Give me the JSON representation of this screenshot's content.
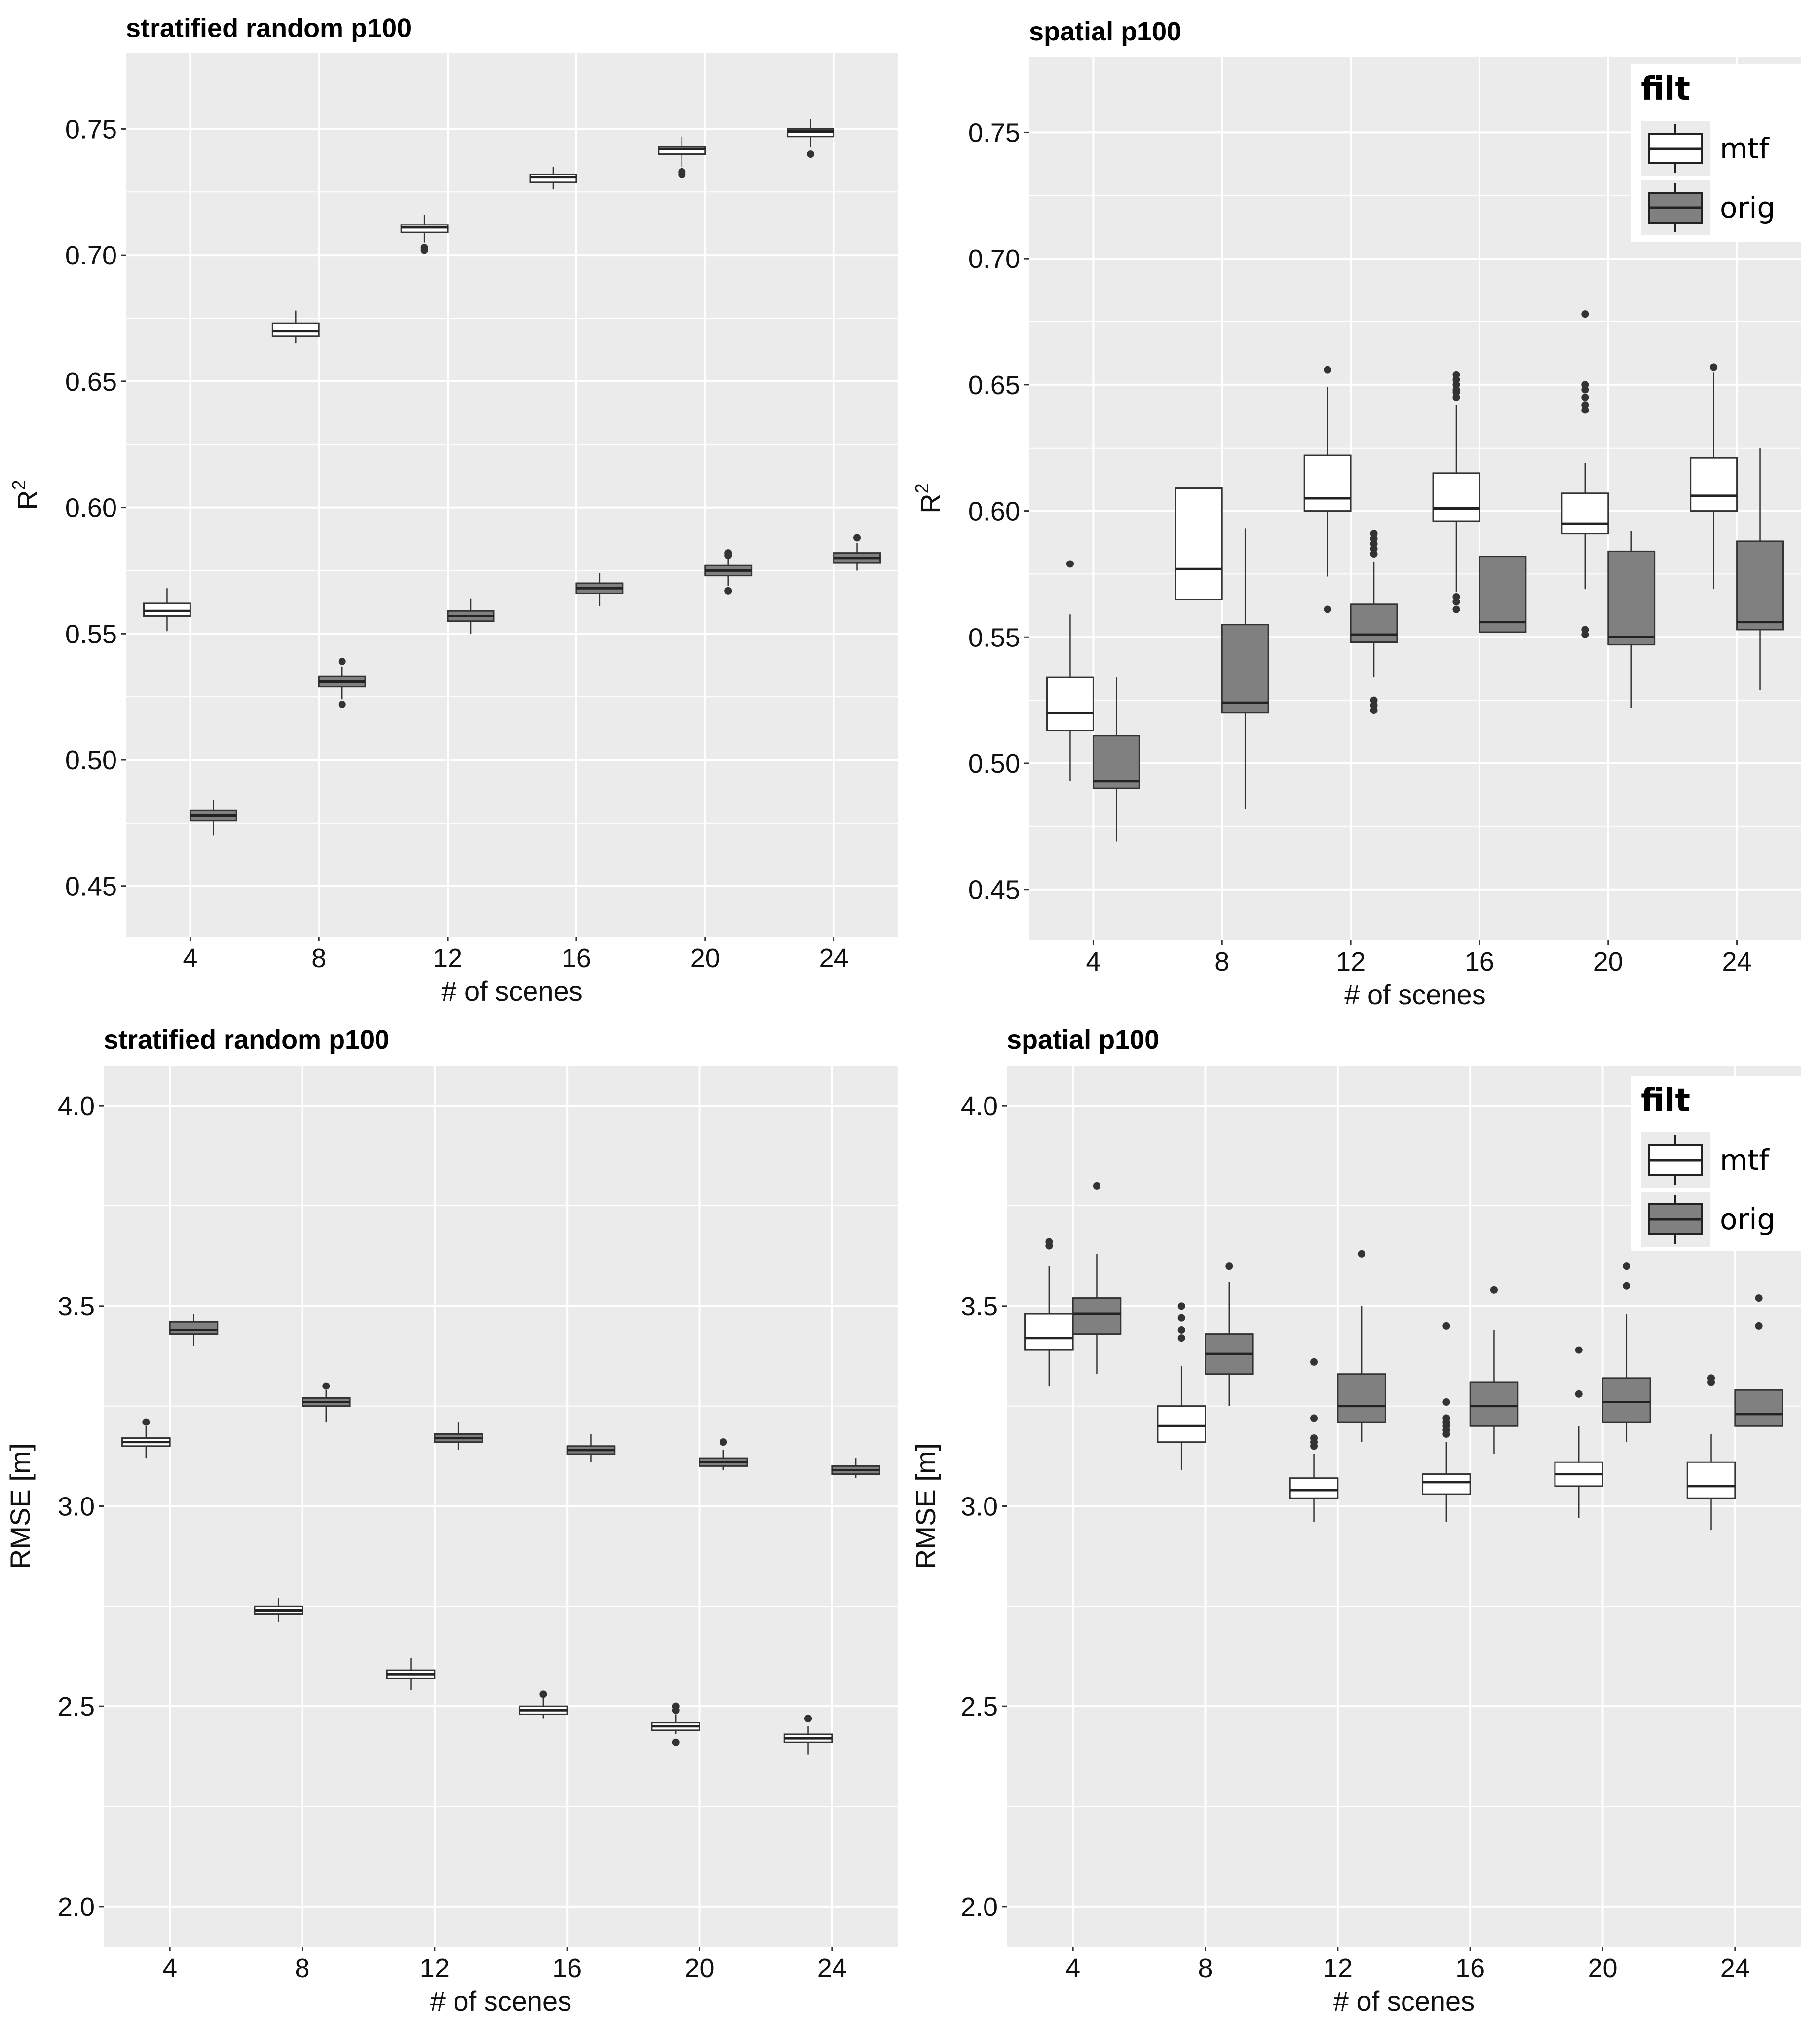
{
  "colors": {
    "panel_bg": "#EBEBEB",
    "grid": "#FFFFFF",
    "mtf_fill": "#FFFFFF",
    "orig_fill": "#808080",
    "stroke": "#333333"
  },
  "chart_data": [
    {
      "type": "boxplot",
      "title": "stratified random p100",
      "xlabel": "# of scenes",
      "ylabel": "R",
      "ylabel_sup": "2",
      "categories": [
        "4",
        "8",
        "12",
        "16",
        "20",
        "24"
      ],
      "ylim": [
        0.43,
        0.78
      ],
      "yticks": [
        0.45,
        0.5,
        0.55,
        0.6,
        0.65,
        0.7,
        0.75
      ],
      "ytick_labels": [
        "0.45",
        "0.50",
        "0.55",
        "0.60",
        "0.65",
        "0.70",
        "0.75"
      ],
      "legend": null,
      "series": [
        {
          "name": "mtf",
          "boxes": [
            {
              "lw": 0.551,
              "q1": 0.557,
              "med": 0.559,
              "q3": 0.562,
              "uw": 0.568,
              "out": []
            },
            {
              "lw": 0.665,
              "q1": 0.668,
              "med": 0.67,
              "q3": 0.673,
              "uw": 0.678,
              "out": []
            },
            {
              "lw": 0.705,
              "q1": 0.709,
              "med": 0.711,
              "q3": 0.712,
              "uw": 0.716,
              "out": [
                0.702,
                0.703
              ]
            },
            {
              "lw": 0.726,
              "q1": 0.729,
              "med": 0.731,
              "q3": 0.732,
              "uw": 0.735,
              "out": []
            },
            {
              "lw": 0.735,
              "q1": 0.74,
              "med": 0.742,
              "q3": 0.743,
              "uw": 0.747,
              "out": [
                0.732,
                0.733
              ]
            },
            {
              "lw": 0.743,
              "q1": 0.747,
              "med": 0.749,
              "q3": 0.75,
              "uw": 0.754,
              "out": [
                0.74
              ]
            }
          ]
        },
        {
          "name": "orig",
          "boxes": [
            {
              "lw": 0.47,
              "q1": 0.476,
              "med": 0.478,
              "q3": 0.48,
              "uw": 0.484,
              "out": []
            },
            {
              "lw": 0.524,
              "q1": 0.529,
              "med": 0.531,
              "q3": 0.533,
              "uw": 0.537,
              "out": [
                0.522,
                0.539
              ]
            },
            {
              "lw": 0.55,
              "q1": 0.555,
              "med": 0.557,
              "q3": 0.559,
              "uw": 0.564,
              "out": []
            },
            {
              "lw": 0.561,
              "q1": 0.566,
              "med": 0.568,
              "q3": 0.57,
              "uw": 0.574,
              "out": []
            },
            {
              "lw": 0.569,
              "q1": 0.573,
              "med": 0.575,
              "q3": 0.577,
              "uw": 0.581,
              "out": [
                0.567,
                0.581,
                0.582
              ]
            },
            {
              "lw": 0.575,
              "q1": 0.578,
              "med": 0.58,
              "q3": 0.582,
              "uw": 0.586,
              "out": [
                0.588
              ]
            }
          ]
        }
      ]
    },
    {
      "type": "boxplot",
      "title": "spatial p100",
      "xlabel": "# of scenes",
      "ylabel": "R",
      "ylabel_sup": "2",
      "categories": [
        "4",
        "8",
        "12",
        "16",
        "20",
        "24"
      ],
      "ylim": [
        0.43,
        0.78
      ],
      "yticks": [
        0.45,
        0.5,
        0.55,
        0.6,
        0.65,
        0.7,
        0.75
      ],
      "ytick_labels": [
        "0.45",
        "0.50",
        "0.55",
        "0.60",
        "0.65",
        "0.70",
        "0.75"
      ],
      "legend": {
        "title": "filt",
        "labels": [
          "mtf",
          "orig"
        ],
        "position": "top-right"
      },
      "series": [
        {
          "name": "mtf",
          "boxes": [
            {
              "lw": 0.493,
              "q1": 0.513,
              "med": 0.52,
              "q3": 0.534,
              "uw": 0.559,
              "out": [
                0.579
              ]
            },
            {
              "lw": 0.565,
              "q1": 0.565,
              "med": 0.577,
              "q3": 0.609,
              "uw": 0.609,
              "out": []
            },
            {
              "lw": 0.574,
              "q1": 0.6,
              "med": 0.605,
              "q3": 0.622,
              "uw": 0.649,
              "out": [
                0.561,
                0.656
              ]
            },
            {
              "lw": 0.568,
              "q1": 0.596,
              "med": 0.601,
              "q3": 0.615,
              "uw": 0.642,
              "out": [
                0.561,
                0.564,
                0.566,
                0.645,
                0.647,
                0.648,
                0.65,
                0.652,
                0.654
              ]
            },
            {
              "lw": 0.569,
              "q1": 0.591,
              "med": 0.595,
              "q3": 0.607,
              "uw": 0.619,
              "out": [
                0.551,
                0.553,
                0.64,
                0.642,
                0.645,
                0.648,
                0.65,
                0.678
              ]
            },
            {
              "lw": 0.569,
              "q1": 0.6,
              "med": 0.606,
              "q3": 0.621,
              "uw": 0.655,
              "out": [
                0.657
              ]
            }
          ]
        },
        {
          "name": "orig",
          "boxes": [
            {
              "lw": 0.469,
              "q1": 0.49,
              "med": 0.493,
              "q3": 0.511,
              "uw": 0.534,
              "out": []
            },
            {
              "lw": 0.482,
              "q1": 0.52,
              "med": 0.524,
              "q3": 0.555,
              "uw": 0.593,
              "out": []
            },
            {
              "lw": 0.534,
              "q1": 0.548,
              "med": 0.551,
              "q3": 0.563,
              "uw": 0.58,
              "out": [
                0.521,
                0.523,
                0.525,
                0.583,
                0.585,
                0.587,
                0.589,
                0.591
              ]
            },
            {
              "lw": 0.552,
              "q1": 0.552,
              "med": 0.556,
              "q3": 0.582,
              "uw": 0.582,
              "out": []
            },
            {
              "lw": 0.522,
              "q1": 0.547,
              "med": 0.55,
              "q3": 0.584,
              "uw": 0.592,
              "out": []
            },
            {
              "lw": 0.529,
              "q1": 0.553,
              "med": 0.556,
              "q3": 0.588,
              "uw": 0.625,
              "out": []
            }
          ]
        }
      ]
    },
    {
      "type": "boxplot",
      "title": "stratified random p100",
      "xlabel": "# of scenes",
      "ylabel": "RMSE [m]",
      "ylabel_sup": "",
      "categories": [
        "4",
        "8",
        "12",
        "16",
        "20",
        "24"
      ],
      "ylim": [
        1.9,
        4.1
      ],
      "yticks": [
        2.0,
        2.5,
        3.0,
        3.5,
        4.0
      ],
      "ytick_labels": [
        "2.0",
        "2.5",
        "3.0",
        "3.5",
        "4.0"
      ],
      "legend": null,
      "series": [
        {
          "name": "mtf",
          "boxes": [
            {
              "lw": 3.12,
              "q1": 3.15,
              "med": 3.16,
              "q3": 3.17,
              "uw": 3.2,
              "out": [
                3.21
              ]
            },
            {
              "lw": 2.71,
              "q1": 2.73,
              "med": 2.74,
              "q3": 2.75,
              "uw": 2.77,
              "out": []
            },
            {
              "lw": 2.54,
              "q1": 2.57,
              "med": 2.58,
              "q3": 2.59,
              "uw": 2.62,
              "out": []
            },
            {
              "lw": 2.47,
              "q1": 2.48,
              "med": 2.49,
              "q3": 2.5,
              "uw": 2.52,
              "out": [
                2.53
              ]
            },
            {
              "lw": 2.43,
              "q1": 2.44,
              "med": 2.45,
              "q3": 2.46,
              "uw": 2.48,
              "out": [
                2.41,
                2.49,
                2.5
              ]
            },
            {
              "lw": 2.38,
              "q1": 2.41,
              "med": 2.42,
              "q3": 2.43,
              "uw": 2.45,
              "out": [
                2.47
              ]
            }
          ]
        },
        {
          "name": "orig",
          "boxes": [
            {
              "lw": 3.4,
              "q1": 3.43,
              "med": 3.44,
              "q3": 3.46,
              "uw": 3.48,
              "out": []
            },
            {
              "lw": 3.21,
              "q1": 3.25,
              "med": 3.26,
              "q3": 3.27,
              "uw": 3.29,
              "out": [
                3.3
              ]
            },
            {
              "lw": 3.14,
              "q1": 3.16,
              "med": 3.17,
              "q3": 3.18,
              "uw": 3.21,
              "out": []
            },
            {
              "lw": 3.11,
              "q1": 3.13,
              "med": 3.14,
              "q3": 3.15,
              "uw": 3.18,
              "out": []
            },
            {
              "lw": 3.09,
              "q1": 3.1,
              "med": 3.11,
              "q3": 3.12,
              "uw": 3.14,
              "out": [
                3.16
              ]
            },
            {
              "lw": 3.07,
              "q1": 3.08,
              "med": 3.09,
              "q3": 3.1,
              "uw": 3.12,
              "out": []
            }
          ]
        }
      ]
    },
    {
      "type": "boxplot",
      "title": "spatial p100",
      "xlabel": "# of scenes",
      "ylabel": "RMSE [m]",
      "ylabel_sup": "",
      "categories": [
        "4",
        "8",
        "12",
        "16",
        "20",
        "24"
      ],
      "ylim": [
        1.9,
        4.1
      ],
      "yticks": [
        2.0,
        2.5,
        3.0,
        3.5,
        4.0
      ],
      "ytick_labels": [
        "2.0",
        "2.5",
        "3.0",
        "3.5",
        "4.0"
      ],
      "legend": {
        "title": "filt",
        "labels": [
          "mtf",
          "orig"
        ],
        "position": "top-right"
      },
      "series": [
        {
          "name": "mtf",
          "boxes": [
            {
              "lw": 3.3,
              "q1": 3.39,
              "med": 3.42,
              "q3": 3.48,
              "uw": 3.6,
              "out": [
                3.65,
                3.66
              ]
            },
            {
              "lw": 3.09,
              "q1": 3.16,
              "med": 3.2,
              "q3": 3.25,
              "uw": 3.35,
              "out": [
                3.42,
                3.44,
                3.47,
                3.5
              ]
            },
            {
              "lw": 2.96,
              "q1": 3.02,
              "med": 3.04,
              "q3": 3.07,
              "uw": 3.13,
              "out": [
                3.15,
                3.16,
                3.17,
                3.22,
                3.36
              ]
            },
            {
              "lw": 2.96,
              "q1": 3.03,
              "med": 3.06,
              "q3": 3.08,
              "uw": 3.16,
              "out": [
                3.18,
                3.19,
                3.2,
                3.21,
                3.22,
                3.26,
                3.45
              ]
            },
            {
              "lw": 2.97,
              "q1": 3.05,
              "med": 3.08,
              "q3": 3.11,
              "uw": 3.2,
              "out": [
                3.28,
                3.39
              ]
            },
            {
              "lw": 2.94,
              "q1": 3.02,
              "med": 3.05,
              "q3": 3.11,
              "uw": 3.18,
              "out": [
                3.31,
                3.32
              ]
            }
          ]
        },
        {
          "name": "orig",
          "boxes": [
            {
              "lw": 3.33,
              "q1": 3.43,
              "med": 3.48,
              "q3": 3.52,
              "uw": 3.63,
              "out": [
                3.8
              ]
            },
            {
              "lw": 3.25,
              "q1": 3.33,
              "med": 3.38,
              "q3": 3.43,
              "uw": 3.56,
              "out": [
                3.6
              ]
            },
            {
              "lw": 3.16,
              "q1": 3.21,
              "med": 3.25,
              "q3": 3.33,
              "uw": 3.5,
              "out": [
                3.63
              ]
            },
            {
              "lw": 3.13,
              "q1": 3.2,
              "med": 3.25,
              "q3": 3.31,
              "uw": 3.44,
              "out": [
                3.54
              ]
            },
            {
              "lw": 3.16,
              "q1": 3.21,
              "med": 3.26,
              "q3": 3.32,
              "uw": 3.48,
              "out": [
                3.55,
                3.6
              ]
            },
            {
              "lw": 3.2,
              "q1": 3.2,
              "med": 3.23,
              "q3": 3.29,
              "uw": 3.29,
              "out": [
                3.45,
                3.52
              ]
            }
          ]
        }
      ]
    }
  ]
}
